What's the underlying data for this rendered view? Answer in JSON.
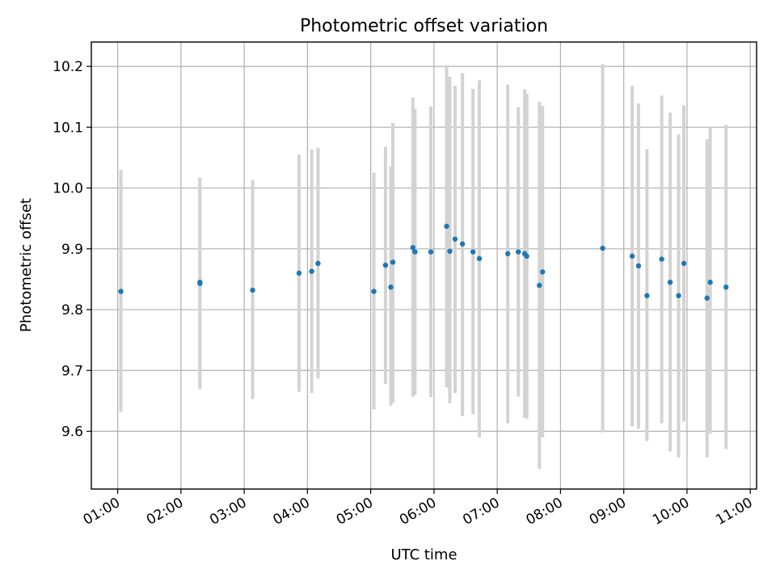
{
  "chart_data": {
    "type": "scatter",
    "title": "Photometric offset variation",
    "xlabel": "UTC time",
    "ylabel": "Photometric offset",
    "x_unit": "UTC hh:mm",
    "xlim": [
      "00:35",
      "11:06"
    ],
    "ylim": [
      9.505,
      10.24
    ],
    "xticks": [
      "01:00",
      "02:00",
      "03:00",
      "04:00",
      "05:00",
      "06:00",
      "07:00",
      "08:00",
      "09:00",
      "10:00",
      "11:00"
    ],
    "yticks": [
      9.6,
      9.7,
      9.8,
      9.9,
      10.0,
      10.1,
      10.2
    ],
    "ytick_labels": [
      "9.6",
      "9.7",
      "9.8",
      "9.9",
      "10.0",
      "10.1",
      "10.2"
    ],
    "grid": true,
    "point_color": "#1f77b4",
    "errorbar_color": "#d3d3d3",
    "points": [
      {
        "x": "01:03",
        "y": 9.83,
        "ylo": 9.632,
        "yhi": 10.03
      },
      {
        "x": "02:18",
        "y": 9.845,
        "ylo": 9.67,
        "yhi": 10.017
      },
      {
        "x": "02:18",
        "y": 9.843,
        "ylo": 9.67,
        "yhi": 10.017
      },
      {
        "x": "03:08",
        "y": 9.832,
        "ylo": 9.653,
        "yhi": 10.013
      },
      {
        "x": "03:52",
        "y": 9.86,
        "ylo": 9.665,
        "yhi": 10.055
      },
      {
        "x": "04:04",
        "y": 9.863,
        "ylo": 9.663,
        "yhi": 10.063
      },
      {
        "x": "04:10",
        "y": 9.876,
        "ylo": 9.687,
        "yhi": 10.066
      },
      {
        "x": "05:03",
        "y": 9.83,
        "ylo": 9.636,
        "yhi": 10.025
      },
      {
        "x": "05:14",
        "y": 9.873,
        "ylo": 9.678,
        "yhi": 10.068
      },
      {
        "x": "05:19",
        "y": 9.837,
        "ylo": 9.642,
        "yhi": 10.035
      },
      {
        "x": "05:21",
        "y": 9.878,
        "ylo": 9.647,
        "yhi": 10.107
      },
      {
        "x": "05:40",
        "y": 9.902,
        "ylo": 9.657,
        "yhi": 10.149
      },
      {
        "x": "05:42",
        "y": 9.895,
        "ylo": 9.66,
        "yhi": 10.13
      },
      {
        "x": "05:57",
        "y": 9.895,
        "ylo": 9.656,
        "yhi": 10.134
      },
      {
        "x": "06:12",
        "y": 9.937,
        "ylo": 9.672,
        "yhi": 10.202
      },
      {
        "x": "06:15",
        "y": 9.896,
        "ylo": 9.646,
        "yhi": 10.183
      },
      {
        "x": "06:20",
        "y": 9.916,
        "ylo": 9.663,
        "yhi": 10.168
      },
      {
        "x": "06:27",
        "y": 9.908,
        "ylo": 9.625,
        "yhi": 10.189
      },
      {
        "x": "06:37",
        "y": 9.895,
        "ylo": 9.628,
        "yhi": 10.163
      },
      {
        "x": "06:43",
        "y": 9.884,
        "ylo": 9.59,
        "yhi": 10.177
      },
      {
        "x": "07:10",
        "y": 9.892,
        "ylo": 9.613,
        "yhi": 10.17
      },
      {
        "x": "07:20",
        "y": 9.895,
        "ylo": 9.657,
        "yhi": 10.133
      },
      {
        "x": "07:26",
        "y": 9.892,
        "ylo": 9.622,
        "yhi": 10.162
      },
      {
        "x": "07:28",
        "y": 9.888,
        "ylo": 9.621,
        "yhi": 10.155
      },
      {
        "x": "07:40",
        "y": 9.84,
        "ylo": 9.538,
        "yhi": 10.142
      },
      {
        "x": "07:43",
        "y": 9.862,
        "ylo": 9.59,
        "yhi": 10.135
      },
      {
        "x": "08:40",
        "y": 9.901,
        "ylo": 9.598,
        "yhi": 10.204
      },
      {
        "x": "09:08",
        "y": 9.888,
        "ylo": 9.608,
        "yhi": 10.168
      },
      {
        "x": "09:14",
        "y": 9.872,
        "ylo": 9.604,
        "yhi": 10.139
      },
      {
        "x": "09:22",
        "y": 9.823,
        "ylo": 9.584,
        "yhi": 10.064
      },
      {
        "x": "09:36",
        "y": 9.883,
        "ylo": 9.613,
        "yhi": 10.152
      },
      {
        "x": "09:44",
        "y": 9.845,
        "ylo": 9.567,
        "yhi": 10.124
      },
      {
        "x": "09:52",
        "y": 9.823,
        "ylo": 9.557,
        "yhi": 10.088
      },
      {
        "x": "09:57",
        "y": 9.876,
        "ylo": 9.616,
        "yhi": 10.136
      },
      {
        "x": "10:19",
        "y": 9.819,
        "ylo": 9.557,
        "yhi": 10.08
      },
      {
        "x": "10:22",
        "y": 9.845,
        "ylo": 9.596,
        "yhi": 10.1
      },
      {
        "x": "10:37",
        "y": 9.837,
        "ylo": 9.571,
        "yhi": 10.104
      }
    ]
  }
}
